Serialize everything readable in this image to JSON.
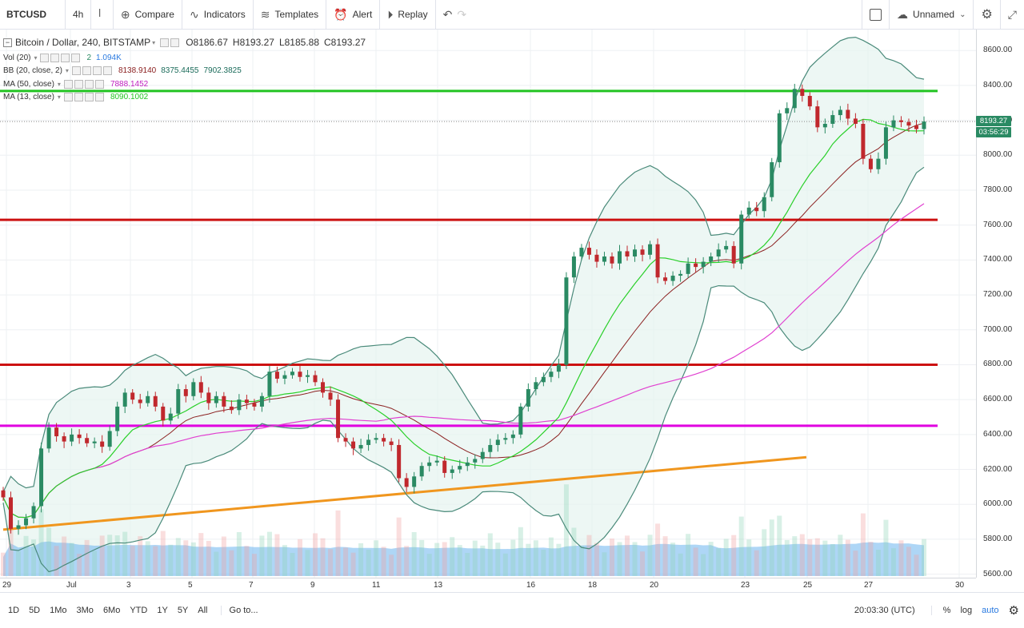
{
  "toolbar": {
    "symbol": "BTCUSD",
    "interval": "4h",
    "compare": "Compare",
    "indicators": "Indicators",
    "templates": "Templates",
    "alert": "Alert",
    "replay": "Replay",
    "layout_name": "Unnamed"
  },
  "legend": {
    "title": "Bitcoin / Dollar, 240, BITSTAMP",
    "open": "O8186.67",
    "high": "H8193.27",
    "low": "L8185.88",
    "close": "C8193.27",
    "vol_name": "Vol (20)",
    "vol_vals": [
      "2",
      "1.094K"
    ],
    "bb_name": "BB (20, close, 2)",
    "bb_vals": [
      "8138.9140",
      "8375.4455",
      "7902.3825"
    ],
    "ma50_name": "MA (50, close)",
    "ma50_val": "7888.1452",
    "ma13_name": "MA (13, close)",
    "ma13_val": "8090.1002"
  },
  "price_axis": {
    "labels": [
      "8600.00",
      "8400.00",
      "8200.00",
      "8000.00",
      "7800.00",
      "7600.00",
      "7400.00",
      "7200.00",
      "7000.00",
      "6800.00",
      "6600.00",
      "6400.00",
      "6200.00",
      "6000.00",
      "5800.00",
      "5600.00"
    ],
    "last_price": "8193.27",
    "countdown": "03:56:29"
  },
  "time_axis": {
    "labels": [
      "29",
      "Jul",
      "3",
      "5",
      "7",
      "9",
      "11",
      "13",
      "16",
      "18",
      "20",
      "23",
      "25",
      "27",
      "30"
    ]
  },
  "bottom": {
    "ranges": [
      "1D",
      "5D",
      "1Mo",
      "3Mo",
      "6Mo",
      "YTD",
      "1Y",
      "5Y",
      "All"
    ],
    "goto": "Go to...",
    "clock": "20:03:30 (UTC)",
    "pct": "%",
    "log": "log",
    "auto": "auto"
  },
  "colors": {
    "up": "#2a8a63",
    "down": "#c0282d",
    "green_line": "#22c422",
    "red_line": "#cc1111",
    "magenta_line": "#e000e0",
    "orange_line": "#f0961e",
    "bb_band": "#4a8a7a",
    "ma50": "#e040d0",
    "ma13": "#2ad02a",
    "basis": "#8b2020",
    "volume": "#6cb4ee"
  },
  "chart_data": {
    "type": "candlestick",
    "symbol": "BTCUSD",
    "ylim": [
      5580,
      8720
    ],
    "horizontal_levels": [
      {
        "price": 8368,
        "color": "green"
      },
      {
        "price": 7630,
        "color": "red"
      },
      {
        "price": 6800,
        "color": "red"
      },
      {
        "price": 6450,
        "color": "magenta"
      }
    ],
    "trendline": {
      "from": [
        "Jun 29",
        5855
      ],
      "to": [
        "Jul 25",
        6270
      ],
      "color": "orange"
    },
    "closes": [
      6040,
      5860,
      5880,
      5920,
      5990,
      6320,
      6440,
      6390,
      6360,
      6400,
      6380,
      6350,
      6360,
      6330,
      6420,
      6560,
      6640,
      6600,
      6580,
      6620,
      6560,
      6480,
      6520,
      6660,
      6620,
      6700,
      6640,
      6580,
      6620,
      6560,
      6540,
      6600,
      6580,
      6560,
      6620,
      6760,
      6720,
      6740,
      6760,
      6730,
      6740,
      6700,
      6640,
      6600,
      6380,
      6360,
      6320,
      6340,
      6370,
      6380,
      6360,
      6340,
      6150,
      6100,
      6160,
      6220,
      6240,
      6250,
      6180,
      6200,
      6220,
      6240,
      6260,
      6300,
      6340,
      6370,
      6380,
      6400,
      6560,
      6660,
      6700,
      6730,
      6760,
      6800,
      7300,
      7420,
      7470,
      7430,
      7390,
      7420,
      7380,
      7450,
      7420,
      7460,
      7430,
      7490,
      7300,
      7280,
      7310,
      7320,
      7380,
      7360,
      7390,
      7420,
      7460,
      7480,
      7380,
      7660,
      7700,
      7680,
      7760,
      7960,
      8240,
      8270,
      8380,
      8340,
      8280,
      8160,
      8180,
      8230,
      8260,
      8210,
      8180,
      7980,
      7920,
      7980,
      8160,
      8200,
      8190,
      8170,
      8150,
      8193
    ],
    "volume_note": "volume bars along bottom with smoothed blue moving average"
  }
}
